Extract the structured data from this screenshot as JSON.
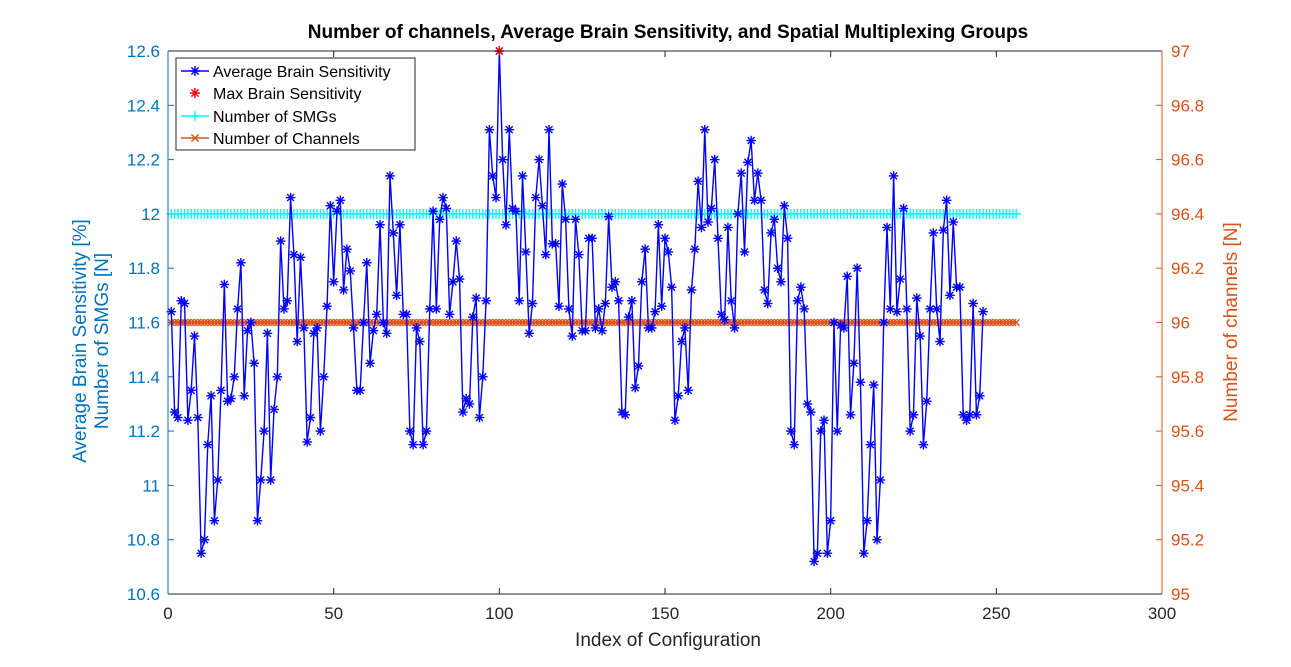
{
  "chart_data": {
    "type": "line",
    "title": "Number of channels, Average Brain Sensitivity, and Spatial Multiplexing Groups",
    "xlabel": "Index of Configuration",
    "ylabel_left": [
      "Average Brain Sensitivity [%]",
      "Number of SMGs [N]"
    ],
    "ylabel_right": "Number of channels [N]",
    "xlim": [
      0,
      300
    ],
    "ylim_left": [
      10.6,
      12.6
    ],
    "ylim_right": [
      95,
      97
    ],
    "xticks": [
      "0",
      "50",
      "100",
      "150",
      "200",
      "250",
      "300"
    ],
    "yticks_left": [
      "10.6",
      "10.8",
      "11",
      "11.2",
      "11.4",
      "11.6",
      "11.8",
      "12",
      "12.2",
      "12.4",
      "12.6"
    ],
    "yticks_right": [
      "95",
      "95.2",
      "95.4",
      "95.6",
      "95.8",
      "96",
      "96.2",
      "96.4",
      "96.6",
      "96.8",
      "97"
    ],
    "legend_position": "top-left",
    "colors": {
      "left_axis": "#0072BD",
      "right_axis": "#D95319",
      "sensitivity": "#0000FF",
      "max": "#FF0000",
      "smg": "#00FFFF",
      "channels": "#D95319"
    },
    "series": [
      {
        "name": "Average Brain Sensitivity",
        "axis": "left",
        "marker": "asterisk",
        "x_start": 1,
        "values": [
          11.64,
          11.27,
          11.25,
          11.68,
          11.67,
          11.24,
          11.35,
          11.55,
          11.25,
          10.75,
          10.8,
          11.15,
          11.33,
          10.87,
          11.02,
          11.35,
          11.74,
          11.31,
          11.32,
          11.4,
          11.65,
          11.82,
          11.33,
          11.57,
          11.6,
          11.45,
          10.87,
          11.02,
          11.2,
          11.56,
          11.02,
          11.28,
          11.4,
          11.9,
          11.65,
          11.68,
          12.06,
          11.85,
          11.53,
          11.84,
          11.58,
          11.16,
          11.25,
          11.56,
          11.58,
          11.2,
          11.4,
          11.66,
          12.03,
          11.75,
          12.01,
          12.05,
          11.72,
          11.87,
          11.79,
          11.58,
          11.35,
          11.35,
          11.6,
          11.82,
          11.45,
          11.57,
          11.63,
          11.96,
          11.6,
          11.56,
          12.14,
          11.93,
          11.7,
          11.96,
          11.63,
          11.63,
          11.2,
          11.15,
          11.58,
          11.53,
          11.15,
          11.2,
          11.65,
          12.01,
          11.65,
          11.98,
          12.06,
          12.02,
          11.63,
          11.75,
          11.9,
          11.76,
          11.27,
          11.32,
          11.3,
          11.62,
          11.69,
          11.25,
          11.4,
          11.68,
          12.31,
          12.14,
          12.06,
          12.6,
          12.2,
          11.96,
          12.31,
          12.02,
          12.01,
          11.68,
          12.14,
          11.86,
          11.56,
          11.67,
          12.06,
          12.2,
          12.03,
          11.85,
          12.31,
          11.89,
          11.89,
          11.66,
          12.11,
          11.98,
          11.65,
          11.55,
          11.98,
          11.85,
          11.57,
          11.57,
          11.91,
          11.91,
          11.58,
          11.65,
          11.57,
          11.67,
          11.99,
          11.73,
          11.75,
          11.68,
          11.27,
          11.26,
          11.62,
          11.68,
          11.36,
          11.44,
          11.75,
          11.87,
          11.58,
          11.58,
          11.64,
          11.96,
          11.66,
          11.91,
          11.86,
          11.73,
          11.24,
          11.33,
          11.53,
          11.58,
          11.35,
          11.72,
          11.87,
          12.12,
          11.95,
          12.31,
          11.97,
          12.02,
          12.2,
          11.91,
          11.63,
          11.61,
          11.95,
          11.68,
          11.58,
          12.0,
          12.15,
          11.86,
          12.19,
          12.27,
          12.05,
          12.15,
          12.05,
          11.72,
          11.67,
          11.93,
          11.98,
          11.8,
          11.75,
          12.03,
          11.91,
          11.2,
          11.15,
          11.68,
          11.73,
          11.65,
          11.3,
          11.27,
          10.72,
          10.75,
          11.2,
          11.24,
          10.75,
          10.87,
          11.6,
          11.2,
          11.59,
          11.58,
          11.77,
          11.26,
          11.45,
          11.8,
          11.38,
          10.75,
          10.87,
          11.15,
          11.37,
          10.8,
          11.02,
          11.6,
          11.95,
          11.65,
          12.14,
          11.64,
          11.76,
          12.02,
          11.65,
          11.2,
          11.26,
          11.69,
          11.55,
          11.15,
          11.31,
          11.65,
          11.93,
          11.65,
          11.53,
          11.94,
          12.05,
          11.7,
          11.97,
          11.73,
          11.73,
          11.26,
          11.24,
          11.26,
          11.67,
          11.26,
          11.33,
          11.64
        ]
      },
      {
        "name": "Max Brain Sensitivity",
        "axis": "left",
        "marker": "asterisk",
        "x": [
          100
        ],
        "values": [
          12.6
        ]
      },
      {
        "name": "Number of SMGs",
        "axis": "left",
        "marker": "plus",
        "x_range": [
          1,
          256
        ],
        "value": 12
      },
      {
        "name": "Number of Channels",
        "axis": "right",
        "marker": "cross",
        "x_range": [
          1,
          256
        ],
        "value": 96
      }
    ]
  }
}
